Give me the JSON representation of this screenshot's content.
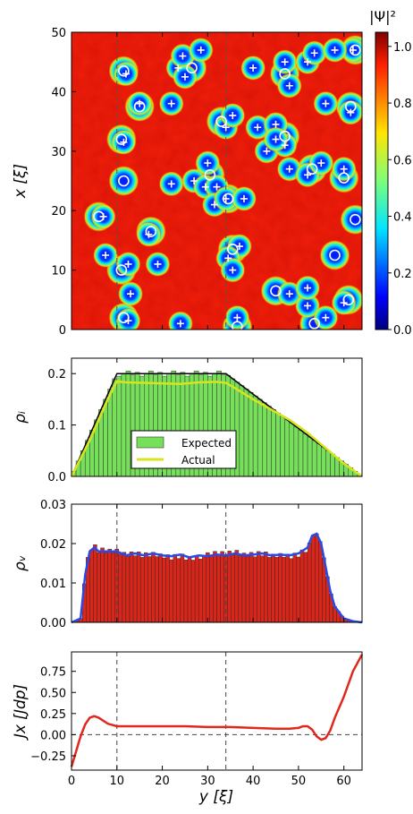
{
  "chart_data": [
    {
      "type": "heatmap",
      "ylabel": "x [ξ]",
      "yticks": [
        "0",
        "10",
        "20",
        "30",
        "40",
        "50"
      ],
      "ylim": [
        0,
        50
      ],
      "xlim": [
        0,
        64
      ],
      "dashed_lines_y": [
        10,
        34
      ],
      "colorbar": {
        "label": "|Ψ|²",
        "ticks": [
          "0.0",
          "0.2",
          "0.4",
          "0.6",
          "0.8",
          "1.0"
        ],
        "range": [
          0,
          1.05
        ],
        "colormap": "jet"
      },
      "vortices_circle": [
        [
          11.5,
          43.5
        ],
        [
          15,
          37.5
        ],
        [
          11,
          32
        ],
        [
          11.5,
          25
        ],
        [
          6,
          19
        ],
        [
          17.5,
          16.5
        ],
        [
          11,
          10
        ],
        [
          11.5,
          2
        ],
        [
          26.5,
          44
        ],
        [
          33,
          35
        ],
        [
          30.5,
          26
        ],
        [
          34.5,
          22
        ],
        [
          35.5,
          13.5
        ],
        [
          36.5,
          0.5
        ],
        [
          47,
          43
        ],
        [
          47,
          32.5
        ],
        [
          53,
          27
        ],
        [
          60,
          25.5
        ],
        [
          61.5,
          37.5
        ],
        [
          62.5,
          47
        ],
        [
          62.5,
          18.5
        ],
        [
          58,
          12.5
        ],
        [
          61,
          5
        ],
        [
          45,
          6.5
        ],
        [
          53.5,
          1
        ]
      ],
      "antivortices_plus": [
        [
          12,
          43
        ],
        [
          15,
          38
        ],
        [
          11.5,
          31.5
        ],
        [
          7,
          19
        ],
        [
          7.5,
          12.5
        ],
        [
          17,
          16
        ],
        [
          12.5,
          11
        ],
        [
          13,
          6
        ],
        [
          12.5,
          1.5
        ],
        [
          22,
          38
        ],
        [
          23.5,
          44
        ],
        [
          24.5,
          46
        ],
        [
          25,
          42.5
        ],
        [
          28.5,
          47
        ],
        [
          22,
          24.5
        ],
        [
          27,
          25
        ],
        [
          29.5,
          24
        ],
        [
          30,
          28
        ],
        [
          32,
          24
        ],
        [
          34,
          34
        ],
        [
          35.5,
          36
        ],
        [
          31.5,
          21
        ],
        [
          34,
          22
        ],
        [
          37,
          14
        ],
        [
          34.5,
          12
        ],
        [
          35.5,
          10
        ],
        [
          36.5,
          2
        ],
        [
          38,
          22
        ],
        [
          40,
          44
        ],
        [
          41,
          34
        ],
        [
          43,
          30
        ],
        [
          45,
          34.5
        ],
        [
          47,
          31
        ],
        [
          45,
          32
        ],
        [
          48,
          27
        ],
        [
          48,
          41
        ],
        [
          47,
          45
        ],
        [
          52,
          45
        ],
        [
          53.5,
          46.5
        ],
        [
          52,
          26
        ],
        [
          55,
          28
        ],
        [
          60,
          27
        ],
        [
          61.5,
          36.5
        ],
        [
          62,
          47
        ],
        [
          58,
          47
        ],
        [
          56,
          38
        ],
        [
          48,
          6
        ],
        [
          52,
          4
        ],
        [
          52,
          7
        ],
        [
          56,
          2
        ],
        [
          60,
          4.5
        ],
        [
          24,
          1
        ],
        [
          19,
          11
        ]
      ]
    },
    {
      "type": "bar",
      "ylabel": "ρᵢ",
      "yticks": [
        "0.0",
        "0.1",
        "0.2"
      ],
      "ylim": [
        0,
        0.23
      ],
      "xlim": [
        0,
        64
      ],
      "bar_color": "#76e05a",
      "legend": {
        "position": "lower-center",
        "entries": [
          "Expected",
          "Actual"
        ]
      },
      "expected_outline": [
        [
          0,
          0
        ],
        [
          10,
          0.2
        ],
        [
          34,
          0.2
        ],
        [
          64,
          0
        ]
      ],
      "expected_bars_x": [
        10,
        12,
        14,
        16,
        18,
        20,
        22,
        24,
        26,
        28,
        30,
        32,
        34
      ],
      "actual_line": [
        [
          0,
          0
        ],
        [
          2,
          0.035
        ],
        [
          4,
          0.07
        ],
        [
          6,
          0.11
        ],
        [
          8,
          0.15
        ],
        [
          10,
          0.185
        ],
        [
          12,
          0.183
        ],
        [
          16,
          0.182
        ],
        [
          20,
          0.181
        ],
        [
          24,
          0.18
        ],
        [
          28,
          0.183
        ],
        [
          32,
          0.184
        ],
        [
          34,
          0.182
        ],
        [
          36,
          0.172
        ],
        [
          40,
          0.15
        ],
        [
          44,
          0.13
        ],
        [
          48,
          0.11
        ],
        [
          52,
          0.085
        ],
        [
          56,
          0.055
        ],
        [
          60,
          0.025
        ],
        [
          64,
          0.0
        ]
      ]
    },
    {
      "type": "bar",
      "ylabel": "ρᵥ",
      "yticks": [
        "0.00",
        "0.01",
        "0.02",
        "0.03"
      ],
      "ylim": [
        0,
        0.03
      ],
      "xlim": [
        0,
        64
      ],
      "bar_color": "#d9261b",
      "line_color": "#2b49e6",
      "dashed_lines_x": [
        10,
        34
      ],
      "density": [
        [
          0,
          0
        ],
        [
          2,
          0.001
        ],
        [
          3,
          0.012
        ],
        [
          4,
          0.018
        ],
        [
          5,
          0.019
        ],
        [
          6,
          0.018
        ],
        [
          8,
          0.018
        ],
        [
          10,
          0.018
        ],
        [
          12,
          0.017
        ],
        [
          14,
          0.0175
        ],
        [
          16,
          0.017
        ],
        [
          18,
          0.0175
        ],
        [
          20,
          0.017
        ],
        [
          22,
          0.0168
        ],
        [
          24,
          0.0172
        ],
        [
          26,
          0.0165
        ],
        [
          28,
          0.017
        ],
        [
          30,
          0.0168
        ],
        [
          32,
          0.0172
        ],
        [
          34,
          0.017
        ],
        [
          36,
          0.0175
        ],
        [
          38,
          0.017
        ],
        [
          40,
          0.0172
        ],
        [
          42,
          0.0175
        ],
        [
          44,
          0.017
        ],
        [
          46,
          0.0172
        ],
        [
          48,
          0.017
        ],
        [
          50,
          0.0175
        ],
        [
          52,
          0.019
        ],
        [
          53,
          0.022
        ],
        [
          54,
          0.0225
        ],
        [
          55,
          0.02
        ],
        [
          56,
          0.014
        ],
        [
          57,
          0.008
        ],
        [
          58,
          0.004
        ],
        [
          60,
          0.001
        ],
        [
          62,
          0.0003
        ],
        [
          64,
          0
        ]
      ]
    },
    {
      "type": "line",
      "xlabel": "y [ξ]",
      "ylabel": "Jx [Jdp]",
      "xticks": [
        "0",
        "10",
        "20",
        "30",
        "40",
        "50",
        "60"
      ],
      "yticks": [
        "−0.25",
        "0.00",
        "0.25",
        "0.50",
        "0.75"
      ],
      "xlim": [
        0,
        64
      ],
      "ylim": [
        -0.42,
        0.98
      ],
      "line_color": "#e0281c",
      "dashed_lines_x": [
        10,
        34
      ],
      "dashed_line_y": 0,
      "current": [
        [
          0,
          -0.38
        ],
        [
          1,
          -0.2
        ],
        [
          2,
          -0.02
        ],
        [
          3,
          0.12
        ],
        [
          4,
          0.2
        ],
        [
          5,
          0.22
        ],
        [
          6,
          0.2
        ],
        [
          8,
          0.13
        ],
        [
          10,
          0.1
        ],
        [
          15,
          0.1
        ],
        [
          20,
          0.1
        ],
        [
          25,
          0.1
        ],
        [
          30,
          0.09
        ],
        [
          35,
          0.09
        ],
        [
          40,
          0.08
        ],
        [
          45,
          0.07
        ],
        [
          48,
          0.07
        ],
        [
          50,
          0.08
        ],
        [
          51,
          0.1
        ],
        [
          52,
          0.1
        ],
        [
          53,
          0.06
        ],
        [
          54,
          -0.02
        ],
        [
          55,
          -0.06
        ],
        [
          56,
          -0.04
        ],
        [
          57,
          0.05
        ],
        [
          58,
          0.2
        ],
        [
          60,
          0.45
        ],
        [
          62,
          0.75
        ],
        [
          64,
          0.95
        ]
      ]
    }
  ]
}
